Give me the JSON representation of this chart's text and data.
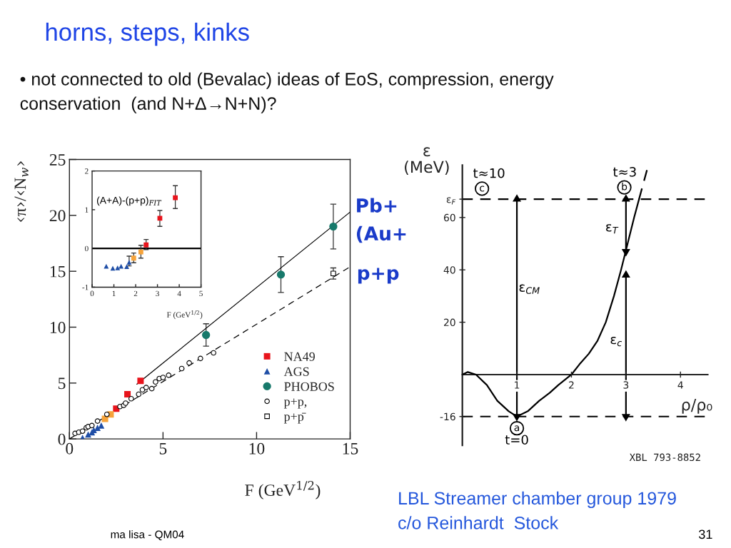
{
  "chart_data": [
    {
      "type": "scatter",
      "title": "horns, steps, kinks",
      "subtitle": "• not connected to old (Bevalac) ideas of EoS, compression, energy\nconservation  (and N+Δ→N+N)?",
      "xlabel": "F (GeV$^{1/2}$)",
      "ylabel": "‹π›/‹N$_{w}$›",
      "xlim": [
        0,
        15
      ],
      "xticks": [
        0,
        5,
        10,
        15
      ],
      "ylim": [
        0,
        25
      ],
      "yticks": [
        0,
        5,
        10,
        15,
        20,
        25
      ],
      "legend": "bottom right",
      "series": [
        {
          "name": "NA49",
          "marker": "square",
          "color": "#e8141c",
          "x": [
            2.5,
            3.1,
            3.8
          ],
          "values": [
            2.7,
            4.0,
            5.2
          ]
        },
        {
          "marker": "square",
          "color": "#f6a33a",
          "x": [
            1.9,
            2.2
          ],
          "values": [
            1.8,
            2.2
          ]
        },
        {
          "name": "AGS",
          "marker": "triangle",
          "color": "#1f4ea6",
          "x": [
            0.7,
            1.0,
            1.2,
            1.3,
            1.5,
            1.7
          ],
          "values": [
            0.1,
            0.4,
            0.6,
            0.8,
            1.0,
            1.2
          ]
        },
        {
          "name": "PHOBOS",
          "marker": "circle",
          "color": "#17796b",
          "x": [
            7.3,
            11.3,
            14.1
          ],
          "values": [
            9.3,
            14.7,
            19.0
          ],
          "errors": [
            1.0,
            1.6,
            2.0
          ]
        },
        {
          "name": "p+p,",
          "marker": "circle",
          "color": "#000000",
          "x": [
            0.3,
            0.5,
            0.7,
            0.9,
            1.0,
            1.2,
            1.5,
            2.0,
            2.7,
            2.9,
            3.0,
            3.3,
            3.7,
            3.9,
            4.1,
            4.4,
            4.6,
            4.8,
            5.0,
            5.3,
            6.0,
            6.4,
            7.0,
            7.7
          ],
          "values": [
            0.5,
            0.6,
            0.7,
            1.0,
            1.1,
            1.2,
            1.6,
            2.2,
            2.9,
            3.0,
            3.2,
            3.6,
            4.0,
            4.4,
            4.6,
            4.5,
            5.1,
            5.4,
            5.5,
            5.7,
            6.3,
            6.8,
            7.2,
            7.7
          ]
        },
        {
          "name": "p+p̄",
          "marker": "square",
          "color": "#000000",
          "x": [
            14.1
          ],
          "values": [
            14.8
          ],
          "errors": [
            0.5
          ]
        },
        {
          "type": "line",
          "marker": "none",
          "line_style": "solid",
          "color": "#000000",
          "x": [
            3.6,
            15
          ],
          "values": [
            4.9,
            20.3
          ]
        },
        {
          "type": "line",
          "marker": "none",
          "line_style": "dashed",
          "color": "#000000",
          "x": [
            0,
            15
          ],
          "values": [
            0,
            15.4
          ]
        }
      ],
      "annotations": [
        "Pb+",
        "(Au+",
        "p+p",
        "ma lisa - QM04",
        "31"
      ]
    },
    {
      "type": "scatter",
      "xlabel": "F (GeV$^{1/2}$)",
      "xlim": [
        0,
        5
      ],
      "xticks": [
        0,
        1,
        2,
        3,
        4,
        5
      ],
      "ylim": [
        -1,
        2
      ],
      "yticks": [
        -1,
        0,
        1,
        2
      ],
      "series": [
        {
          "marker": "square",
          "color": "#e8141c",
          "x": [
            2.48,
            3.11,
            3.82
          ],
          "values": [
            0.09,
            0.78,
            1.31
          ],
          "errors": [
            [
              -0.03,
              0.23
            ],
            [
              0.57,
              0.98
            ],
            [
              1.03,
              1.62
            ]
          ]
        },
        {
          "marker": "square",
          "color": "#f6a33a",
          "x": [
            1.91,
            2.24
          ],
          "values": [
            -0.25,
            -0.09
          ],
          "errors": [
            [
              -0.37,
              -0.12
            ],
            [
              -0.25,
              0.08
            ]
          ]
        },
        {
          "marker": "triangle",
          "color": "#1f4ea6",
          "x": [
            0.65,
            0.95,
            1.17,
            1.33,
            1.59,
            1.7
          ],
          "values": [
            -0.46,
            -0.51,
            -0.5,
            -0.46,
            -0.47,
            -0.36
          ],
          "errors": [
            null,
            null,
            null,
            null,
            null,
            [
              -0.45,
              -0.2
            ]
          ]
        }
      ],
      "ref_lines": [
        {
          "axis": "y",
          "value": 0,
          "color": "#000000"
        }
      ],
      "annotations": [
        "(A+A)-(p+p)$_{FIT}$"
      ]
    },
    {
      "type": "line",
      "xlabel": "ρ/ρ₀",
      "ylabel": "ε\n(MeV)",
      "xlim": [
        0,
        4.5
      ],
      "xticks": [
        1,
        2,
        3,
        4
      ],
      "ylim": [
        -27,
        80
      ],
      "yticks": [
        -16,
        20,
        40,
        60,
        {
          "value": 67,
          "label": "ε$_{F}$"
        }
      ],
      "series": [
        {
          "marker": "none",
          "line_style": "solid",
          "color": "#000000",
          "x": [
            0,
            0.1,
            0.25,
            0.45,
            0.64,
            0.85,
            1.0,
            1.2,
            1.41,
            1.6,
            1.76,
            2.0,
            2.15,
            2.32,
            2.48,
            2.63,
            2.78,
            2.91,
            3.03,
            3.15,
            3.24
          ],
          "values": [
            0,
            1,
            0,
            -4,
            -10,
            -14,
            -16,
            -14,
            -10,
            -7,
            -4,
            0,
            4,
            8,
            13,
            20,
            30,
            40,
            50,
            60,
            67
          ]
        },
        {
          "marker": "none",
          "line_style": "dashed",
          "color": "#000000",
          "x": [
            3.24,
            3.41
          ],
          "values": [
            67,
            80
          ]
        },
        {
          "marker": "triangle",
          "line_style": "solid",
          "color": "#000000",
          "x": [
            1,
            1
          ],
          "values": [
            -16,
            67
          ]
        },
        {
          "marker": "triangle",
          "line_style": "solid",
          "color": "#000000",
          "x": [
            3,
            3
          ],
          "values": [
            47,
            67
          ]
        },
        {
          "marker": "triangle",
          "line_style": "solid",
          "color": "#000000",
          "x": [
            3,
            3
          ],
          "values": [
            -16,
            38
          ]
        }
      ],
      "ref_lines": [
        {
          "axis": "y",
          "value": -16,
          "line_style": "dashed",
          "color": "#000000"
        },
        {
          "axis": "y",
          "value": 67,
          "line_style": "dashed",
          "color": "#000000"
        }
      ],
      "annotations": [
        "ε$_{CM}$",
        "ε$_{T}$",
        "ε$_{c}$",
        "a",
        "t=0",
        "b",
        "t≈3",
        "c",
        "t≈10",
        "XBL 793-8852",
        "LBL Streamer chamber group 1979",
        "c/o Reinhardt  Stock"
      ]
    }
  ]
}
